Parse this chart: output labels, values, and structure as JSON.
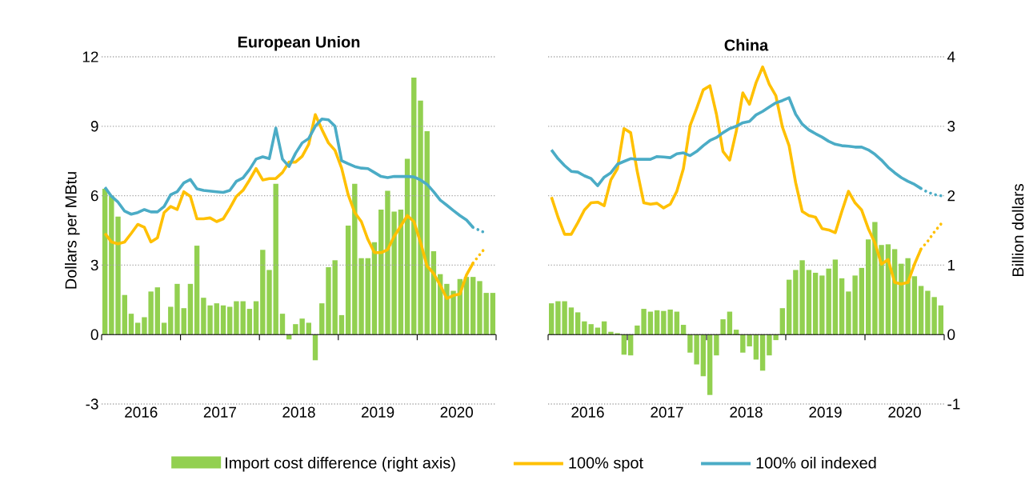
{
  "chart_data": [
    {
      "type": "bar",
      "title": "European Union",
      "ylabel": "Dollars per MBtu",
      "x": [
        2016.042,
        2016.125,
        2016.208,
        2016.292,
        2016.375,
        2016.458,
        2016.542,
        2016.625,
        2016.708,
        2016.792,
        2016.875,
        2016.958,
        2017.042,
        2017.125,
        2017.208,
        2017.292,
        2017.375,
        2017.458,
        2017.542,
        2017.625,
        2017.708,
        2017.792,
        2017.875,
        2017.958,
        2018.042,
        2018.125,
        2018.208,
        2018.292,
        2018.375,
        2018.458,
        2018.542,
        2018.625,
        2018.708,
        2018.792,
        2018.875,
        2018.958,
        2019.042,
        2019.125,
        2019.208,
        2019.292,
        2019.375,
        2019.458,
        2019.542,
        2019.625,
        2019.708,
        2019.792,
        2019.875,
        2019.958,
        2020.042,
        2020.125,
        2020.208,
        2020.292,
        2020.375,
        2020.458,
        2020.542,
        2020.625,
        2020.708,
        2020.792,
        2020.875,
        2020.958
      ],
      "xlim": [
        2016,
        2021
      ],
      "xticks": [
        {
          "value": 2016,
          "label": null
        },
        {
          "value": 2016.5,
          "label": "2016"
        },
        {
          "value": 2017,
          "label": null
        },
        {
          "value": 2017.5,
          "label": "2017"
        },
        {
          "value": 2018,
          "label": null
        },
        {
          "value": 2018.5,
          "label": "2018"
        },
        {
          "value": 2019,
          "label": null
        },
        {
          "value": 2019.5,
          "label": "2019"
        },
        {
          "value": 2020,
          "label": null
        },
        {
          "value": 2020.5,
          "label": "2020"
        },
        {
          "value": 2021,
          "label": null
        }
      ],
      "ylim": [
        -3,
        12
      ],
      "yticks": [
        -3,
        0,
        3,
        6,
        9,
        12
      ],
      "y2lim": [
        -1,
        4
      ],
      "grid": "y",
      "legend": "bottom",
      "series": [
        {
          "axis": "y2",
          "name": "Import cost difference (right axis)",
          "color": "#92d050",
          "values": [
            2.1,
            2.0,
            1.7,
            0.57,
            0.3,
            0.17,
            0.25,
            0.62,
            0.68,
            0.17,
            0.4,
            0.73,
            0.38,
            0.73,
            1.28,
            0.53,
            0.42,
            0.45,
            0.42,
            0.4,
            0.48,
            0.48,
            0.37,
            0.48,
            1.22,
            0.93,
            2.17,
            0.3,
            -0.07,
            0.15,
            0.23,
            0.17,
            -0.37,
            0.45,
            0.97,
            1.07,
            0.28,
            1.57,
            2.17,
            1.1,
            1.1,
            1.33,
            1.8,
            2.07,
            1.77,
            1.8,
            2.53,
            3.7,
            3.37,
            2.93,
            1.2,
            0.87,
            0.73,
            0.63,
            0.8,
            0.83,
            0.83,
            0.77,
            0.6,
            0.6
          ]
        },
        {
          "type": "line",
          "axis": "y",
          "name": "100% spot",
          "color": "#ffc000",
          "line_style": "solid",
          "values": [
            4.37,
            4.0,
            3.92,
            4.0,
            4.37,
            4.76,
            4.63,
            4.0,
            4.18,
            5.27,
            5.53,
            5.4,
            6.17,
            5.97,
            5.0,
            5.0,
            5.04,
            4.88,
            5.0,
            5.46,
            5.97,
            6.23,
            6.68,
            7.17,
            6.68,
            6.74,
            6.74,
            7.0,
            7.45,
            7.45,
            7.7,
            8.22,
            9.5,
            8.86,
            8.28,
            7.96,
            7.19,
            6.04,
            5.27,
            4.88,
            4.11,
            3.54,
            3.54,
            3.67,
            4.24,
            4.69,
            5.14,
            4.88,
            3.98,
            2.96,
            2.64,
            2.13,
            1.56,
            1.69,
            1.75,
            2.58,
            3.09,
            null,
            null,
            null
          ]
        },
        {
          "type": "line",
          "axis": "y",
          "name": "100% oil indexed",
          "color": "#4bacc6",
          "line_style": "solid",
          "values": [
            6.36,
            5.97,
            5.72,
            5.33,
            5.2,
            5.27,
            5.4,
            5.3,
            5.3,
            5.53,
            6.04,
            6.17,
            6.55,
            6.7,
            6.3,
            6.23,
            6.2,
            6.17,
            6.14,
            6.23,
            6.62,
            6.77,
            7.13,
            7.58,
            7.68,
            7.6,
            8.92,
            7.58,
            7.26,
            7.83,
            8.28,
            8.47,
            9.0,
            9.31,
            9.28,
            9.0,
            7.51,
            7.38,
            7.26,
            7.19,
            7.17,
            7.0,
            6.83,
            6.78,
            6.83,
            6.83,
            6.83,
            6.81,
            6.68,
            6.49,
            6.17,
            5.81,
            5.59,
            5.36,
            5.14,
            4.95,
            4.63,
            null,
            null,
            null
          ]
        },
        {
          "type": "line",
          "axis": "y",
          "color": "#ffc000",
          "line_style": "dotted",
          "x": [
            2020.708,
            2020.792,
            2020.875
          ],
          "values": [
            3.09,
            3.45,
            3.8
          ]
        },
        {
          "type": "line",
          "axis": "y",
          "color": "#4bacc6",
          "line_style": "dotted",
          "x": [
            2020.708,
            2020.792,
            2020.875
          ],
          "values": [
            4.63,
            4.5,
            4.37
          ]
        }
      ]
    },
    {
      "type": "bar",
      "title": "China",
      "y2label": "Billion dollars",
      "x": [
        2016.042,
        2016.125,
        2016.208,
        2016.292,
        2016.375,
        2016.458,
        2016.542,
        2016.625,
        2016.708,
        2016.792,
        2016.875,
        2016.958,
        2017.042,
        2017.125,
        2017.208,
        2017.292,
        2017.375,
        2017.458,
        2017.542,
        2017.625,
        2017.708,
        2017.792,
        2017.875,
        2017.958,
        2018.042,
        2018.125,
        2018.208,
        2018.292,
        2018.375,
        2018.458,
        2018.542,
        2018.625,
        2018.708,
        2018.792,
        2018.875,
        2018.958,
        2019.042,
        2019.125,
        2019.208,
        2019.292,
        2019.375,
        2019.458,
        2019.542,
        2019.625,
        2019.708,
        2019.792,
        2019.875,
        2019.958,
        2020.042,
        2020.125,
        2020.208,
        2020.292,
        2020.375,
        2020.458,
        2020.542,
        2020.625,
        2020.708,
        2020.792,
        2020.875,
        2020.958
      ],
      "xlim": [
        2016,
        2021
      ],
      "xticks": [
        {
          "value": 2016,
          "label": null
        },
        {
          "value": 2016.5,
          "label": "2016"
        },
        {
          "value": 2017,
          "label": null
        },
        {
          "value": 2017.5,
          "label": "2017"
        },
        {
          "value": 2018,
          "label": null
        },
        {
          "value": 2018.5,
          "label": "2018"
        },
        {
          "value": 2019,
          "label": null
        },
        {
          "value": 2019.5,
          "label": "2019"
        },
        {
          "value": 2020,
          "label": null
        },
        {
          "value": 2020.5,
          "label": "2020"
        },
        {
          "value": 2021,
          "label": null
        }
      ],
      "ylim": [
        -3,
        12
      ],
      "y2lim": [
        -1,
        4
      ],
      "y2ticks": [
        -1,
        0,
        1,
        2,
        3,
        4
      ],
      "grid": "y",
      "series": [
        {
          "axis": "y2",
          "color": "#92d050",
          "values": [
            0.45,
            0.48,
            0.48,
            0.39,
            0.32,
            0.19,
            0.15,
            0.1,
            0.19,
            0.04,
            0.02,
            -0.29,
            -0.3,
            0.13,
            0.37,
            0.33,
            0.35,
            0.34,
            0.36,
            0.33,
            0.14,
            -0.26,
            -0.43,
            -0.6,
            -0.87,
            -0.3,
            0.22,
            0.33,
            0.07,
            -0.26,
            -0.17,
            -0.36,
            -0.52,
            -0.3,
            -0.08,
            0.38,
            0.79,
            0.93,
            1.07,
            0.93,
            0.89,
            0.85,
            0.95,
            1.08,
            0.81,
            0.62,
            0.85,
            0.96,
            1.37,
            1.62,
            1.29,
            1.3,
            1.23,
            1.02,
            1.1,
            0.84,
            0.7,
            0.63,
            0.54,
            0.42
          ]
        },
        {
          "type": "line",
          "axis": "y",
          "color": "#ffc000",
          "line_style": "solid",
          "values": [
            5.94,
            5.07,
            4.33,
            4.33,
            4.83,
            5.38,
            5.69,
            5.72,
            5.57,
            6.68,
            7.17,
            8.9,
            8.72,
            7.05,
            5.69,
            5.63,
            5.67,
            5.47,
            5.63,
            6.19,
            7.17,
            9.02,
            9.77,
            10.57,
            10.75,
            9.52,
            7.91,
            7.54,
            8.78,
            10.44,
            9.95,
            10.88,
            11.56,
            10.81,
            10.32,
            8.96,
            8.16,
            6.56,
            5.32,
            5.14,
            5.07,
            4.58,
            4.52,
            4.4,
            5.32,
            6.19,
            5.69,
            5.38,
            4.58,
            3.96,
            3.04,
            3.24,
            2.25,
            2.18,
            2.25,
            3.04,
            3.7,
            null,
            null,
            null
          ]
        },
        {
          "type": "line",
          "axis": "y",
          "color": "#4bacc6",
          "line_style": "solid",
          "values": [
            7.98,
            7.6,
            7.3,
            7.05,
            7.02,
            6.86,
            6.74,
            6.43,
            6.8,
            6.99,
            7.36,
            7.48,
            7.6,
            7.57,
            7.57,
            7.57,
            7.69,
            7.67,
            7.64,
            7.81,
            7.85,
            7.73,
            7.91,
            8.16,
            8.38,
            8.51,
            8.72,
            8.9,
            9.0,
            9.15,
            9.21,
            9.49,
            9.64,
            9.83,
            10.01,
            10.11,
            10.23,
            9.52,
            9.09,
            8.84,
            8.68,
            8.53,
            8.35,
            8.22,
            8.16,
            8.14,
            8.1,
            8.1,
            7.98,
            7.79,
            7.54,
            7.23,
            6.99,
            6.78,
            6.62,
            6.49,
            6.31,
            null,
            null,
            null
          ]
        },
        {
          "type": "line",
          "axis": "y",
          "color": "#ffc000",
          "line_style": "dotted",
          "x": [
            2020.708,
            2020.792,
            2020.875,
            2020.958
          ],
          "values": [
            3.7,
            4.03,
            4.43,
            4.77
          ]
        },
        {
          "type": "line",
          "axis": "y",
          "color": "#4bacc6",
          "line_style": "dotted",
          "x": [
            2020.708,
            2020.792,
            2020.875,
            2020.958
          ],
          "values": [
            6.31,
            6.15,
            6.05,
            6.0
          ]
        }
      ]
    }
  ]
}
